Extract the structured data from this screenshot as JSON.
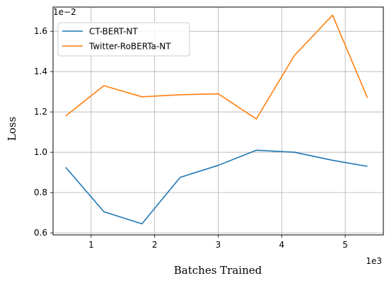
{
  "chart_data": {
    "type": "line",
    "title": "",
    "xlabel": "Batches Trained",
    "ylabel": "Loss",
    "x_offset_label": "1e3",
    "y_offset_label": "1e−2",
    "xlim": [
      0.4,
      5.6
    ],
    "ylim": [
      0.59,
      1.72
    ],
    "xticks": [
      1,
      2,
      3,
      4,
      5
    ],
    "yticks": [
      0.6,
      0.8,
      1.0,
      1.2,
      1.4,
      1.6
    ],
    "grid": true,
    "legend_position": "top-left",
    "series": [
      {
        "name": "CT-BERT-NT",
        "color": "#1f77b4",
        "x": [
          0.6,
          1.2,
          1.8,
          2.4,
          3.0,
          3.6,
          4.2,
          4.8,
          5.35
        ],
        "y": [
          0.925,
          0.705,
          0.645,
          0.875,
          0.935,
          1.01,
          1.0,
          0.96,
          0.93
        ]
      },
      {
        "name": "Twitter-RoBERTa-NT",
        "color": "#ff7f0e",
        "x": [
          0.6,
          1.2,
          1.8,
          2.4,
          3.0,
          3.6,
          4.2,
          4.8,
          5.35
        ],
        "y": [
          1.18,
          1.33,
          1.275,
          1.285,
          1.29,
          1.165,
          1.48,
          1.68,
          1.27
        ]
      }
    ]
  }
}
